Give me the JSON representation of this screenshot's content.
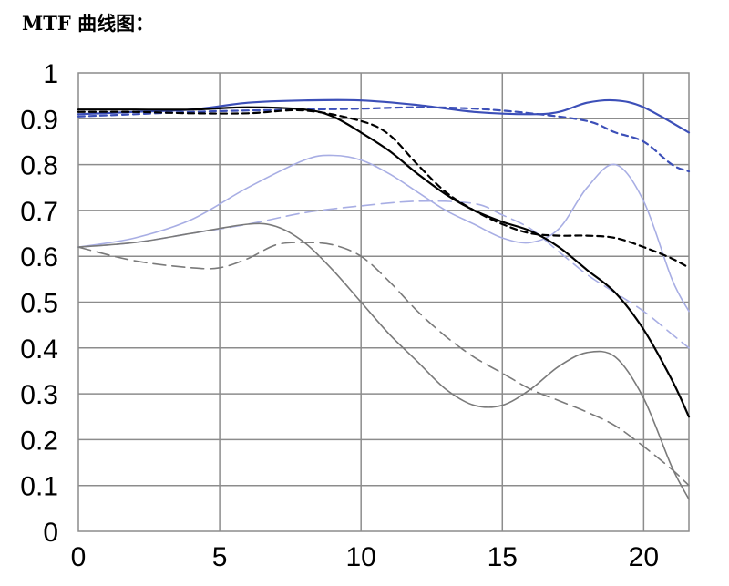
{
  "title": "MTF 曲线图：",
  "chart_data": {
    "type": "line",
    "title": "MTF 曲线图：",
    "xlabel": "",
    "ylabel": "",
    "xlim": [
      0,
      21.6
    ],
    "ylim": [
      0,
      1
    ],
    "grid": true,
    "x_ticks": [
      "0",
      "5",
      "10",
      "15",
      "20"
    ],
    "y_ticks": [
      "0",
      "0.1",
      "0.2",
      "0.3",
      "0.4",
      "0.5",
      "0.6",
      "0.7",
      "0.8",
      "0.9",
      "1"
    ],
    "series": [
      {
        "color": "#3c4fb8",
        "dash": false,
        "x": [
          0,
          2,
          4,
          6,
          8,
          10,
          12,
          14,
          16,
          17,
          18,
          19,
          20,
          21.6
        ],
        "y": [
          0.91,
          0.915,
          0.92,
          0.935,
          0.94,
          0.94,
          0.93,
          0.915,
          0.91,
          0.915,
          0.935,
          0.94,
          0.925,
          0.87
        ]
      },
      {
        "color": "#3c4fb8",
        "dash": true,
        "x": [
          0,
          2,
          4,
          6,
          8,
          10,
          12,
          14,
          16,
          18,
          19,
          20,
          21,
          21.6
        ],
        "y": [
          0.905,
          0.91,
          0.915,
          0.918,
          0.92,
          0.922,
          0.925,
          0.922,
          0.912,
          0.895,
          0.87,
          0.85,
          0.8,
          0.785
        ]
      },
      {
        "color": "#000000",
        "dash": false,
        "x": [
          0,
          2,
          4,
          6,
          8,
          9,
          10,
          11,
          12,
          13,
          14,
          15,
          16,
          17,
          18,
          19,
          20,
          21,
          21.6
        ],
        "y": [
          0.92,
          0.92,
          0.92,
          0.925,
          0.92,
          0.905,
          0.87,
          0.83,
          0.78,
          0.735,
          0.7,
          0.675,
          0.655,
          0.62,
          0.57,
          0.52,
          0.44,
          0.33,
          0.25
        ]
      },
      {
        "color": "#000000",
        "dash": true,
        "x": [
          0,
          2,
          4,
          6,
          8,
          10,
          11,
          12,
          13,
          14,
          15,
          16,
          17,
          18,
          19,
          20,
          21,
          21.6
        ],
        "y": [
          0.915,
          0.915,
          0.912,
          0.912,
          0.918,
          0.895,
          0.865,
          0.8,
          0.74,
          0.7,
          0.67,
          0.65,
          0.645,
          0.645,
          0.64,
          0.62,
          0.595,
          0.575
        ]
      },
      {
        "color": "#a8aee4",
        "dash": false,
        "x": [
          0,
          2,
          4,
          6,
          8,
          9,
          10,
          11,
          12,
          13,
          14,
          15,
          16,
          17,
          18,
          19,
          20,
          21,
          21.6
        ],
        "y": [
          0.62,
          0.64,
          0.68,
          0.75,
          0.81,
          0.82,
          0.81,
          0.78,
          0.74,
          0.7,
          0.67,
          0.64,
          0.63,
          0.66,
          0.75,
          0.8,
          0.72,
          0.55,
          0.48
        ]
      },
      {
        "color": "#a8aee4",
        "dash": true,
        "x": [
          0,
          2,
          4,
          6,
          8,
          10,
          12,
          14,
          15,
          16,
          17,
          18,
          19,
          20,
          21,
          21.6
        ],
        "y": [
          0.62,
          0.63,
          0.65,
          0.67,
          0.695,
          0.71,
          0.72,
          0.715,
          0.69,
          0.66,
          0.61,
          0.56,
          0.52,
          0.48,
          0.43,
          0.4
        ]
      },
      {
        "color": "#7a7a7a",
        "dash": false,
        "x": [
          0,
          2,
          4,
          6,
          7,
          8,
          9,
          10,
          11,
          12,
          13,
          14,
          15,
          16,
          17,
          18,
          19,
          20,
          21,
          21.6
        ],
        "y": [
          0.62,
          0.63,
          0.65,
          0.67,
          0.665,
          0.63,
          0.57,
          0.5,
          0.43,
          0.37,
          0.31,
          0.275,
          0.275,
          0.31,
          0.36,
          0.39,
          0.38,
          0.29,
          0.14,
          0.07
        ]
      },
      {
        "color": "#7a7a7a",
        "dash": true,
        "x": [
          0,
          2,
          4,
          5,
          6,
          7,
          8,
          9,
          10,
          11,
          12,
          13,
          14,
          15,
          16,
          17,
          18,
          19,
          20,
          21,
          21.6
        ],
        "y": [
          0.62,
          0.59,
          0.575,
          0.575,
          0.595,
          0.625,
          0.63,
          0.625,
          0.6,
          0.545,
          0.48,
          0.425,
          0.38,
          0.345,
          0.31,
          0.285,
          0.26,
          0.23,
          0.185,
          0.135,
          0.1
        ]
      }
    ]
  }
}
